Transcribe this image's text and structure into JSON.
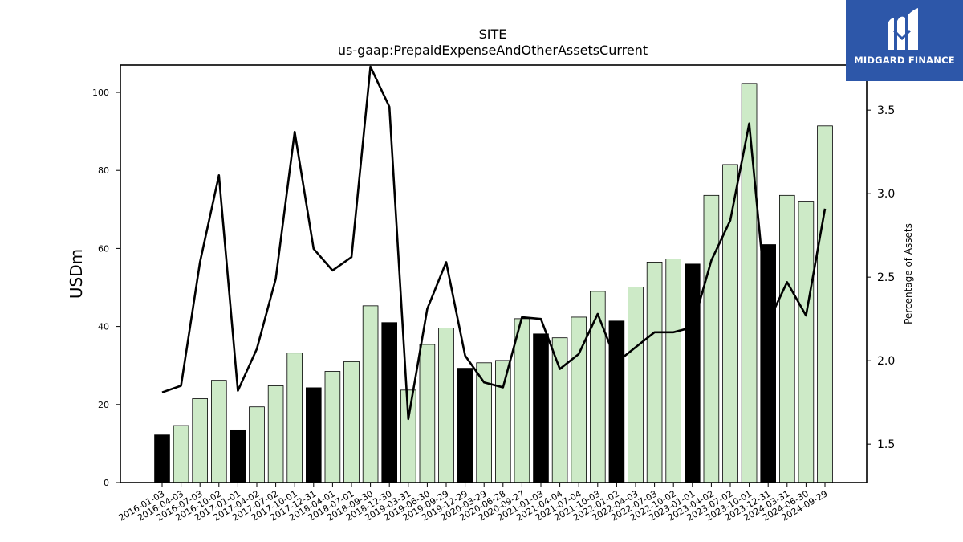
{
  "brand": {
    "name": "MIDGARD FINANCE",
    "bg_color": "#2d57a9"
  },
  "chart_data": {
    "type": "bar",
    "title": "SITE",
    "subtitle": "us-gaap:PrepaidExpenseAndOtherAssetsCurrent",
    "ylabel": "USDm",
    "y2label": "Percentage of Assets",
    "ylim": [
      0,
      107
    ],
    "y2lim": [
      1.27,
      3.77
    ],
    "yticks": [
      0,
      20,
      40,
      60,
      80,
      100
    ],
    "y2ticks": [
      1.5,
      2.0,
      2.5,
      3.0,
      3.5
    ],
    "categories": [
      "2016-01-03",
      "2016-04-03",
      "2016-07-03",
      "2016-10-02",
      "2017-01-01",
      "2017-04-02",
      "2017-07-02",
      "2017-10-01",
      "2017-12-31",
      "2018-04-01",
      "2018-07-01",
      "2018-09-30",
      "2018-12-30",
      "2019-03-31",
      "2019-06-30",
      "2019-09-29",
      "2019-12-29",
      "2020-03-29",
      "2020-06-28",
      "2020-09-27",
      "2021-01-03",
      "2021-04-04",
      "2021-07-04",
      "2021-10-03",
      "2022-01-02",
      "2022-04-03",
      "2022-07-03",
      "2022-10-02",
      "2023-01-01",
      "2023-04-02",
      "2023-07-02",
      "2023-10-01",
      "2023-12-31",
      "2024-03-31",
      "2024-06-30",
      "2024-09-29"
    ],
    "series": [
      {
        "type": "bar",
        "values": [
          12.2,
          14.6,
          21.5,
          26.2,
          13.5,
          19.4,
          24.8,
          33.2,
          24.3,
          28.5,
          31.0,
          45.3,
          41.0,
          23.7,
          35.4,
          39.6,
          29.3,
          30.7,
          31.3,
          42.0,
          38.1,
          37.1,
          42.4,
          49.0,
          41.4,
          50.1,
          56.5,
          57.3,
          56.0,
          73.6,
          81.5,
          102.3,
          61.0,
          73.6,
          72.1,
          91.4
        ],
        "highlight": [
          true,
          false,
          false,
          false,
          true,
          false,
          false,
          false,
          true,
          false,
          false,
          false,
          true,
          false,
          false,
          false,
          true,
          false,
          false,
          false,
          true,
          false,
          false,
          false,
          true,
          false,
          false,
          false,
          true,
          false,
          false,
          false,
          true,
          false,
          false,
          false
        ]
      },
      {
        "type": "line",
        "axis": "right",
        "values": [
          1.81,
          1.85,
          2.59,
          3.11,
          1.82,
          2.07,
          2.49,
          3.37,
          2.67,
          2.54,
          2.62,
          3.76,
          3.52,
          1.65,
          2.31,
          2.59,
          2.03,
          1.87,
          1.84,
          2.26,
          2.25,
          1.95,
          2.04,
          2.28,
          1.99,
          2.08,
          2.17,
          2.17,
          2.2,
          2.6,
          2.84,
          3.42,
          2.23,
          2.47,
          2.27,
          2.91
        ]
      }
    ],
    "colors": {
      "bar": "#cdeac7",
      "bar_highlight": "#000000",
      "bar_edge": "#000000",
      "line": "#000000"
    },
    "grid": false
  }
}
